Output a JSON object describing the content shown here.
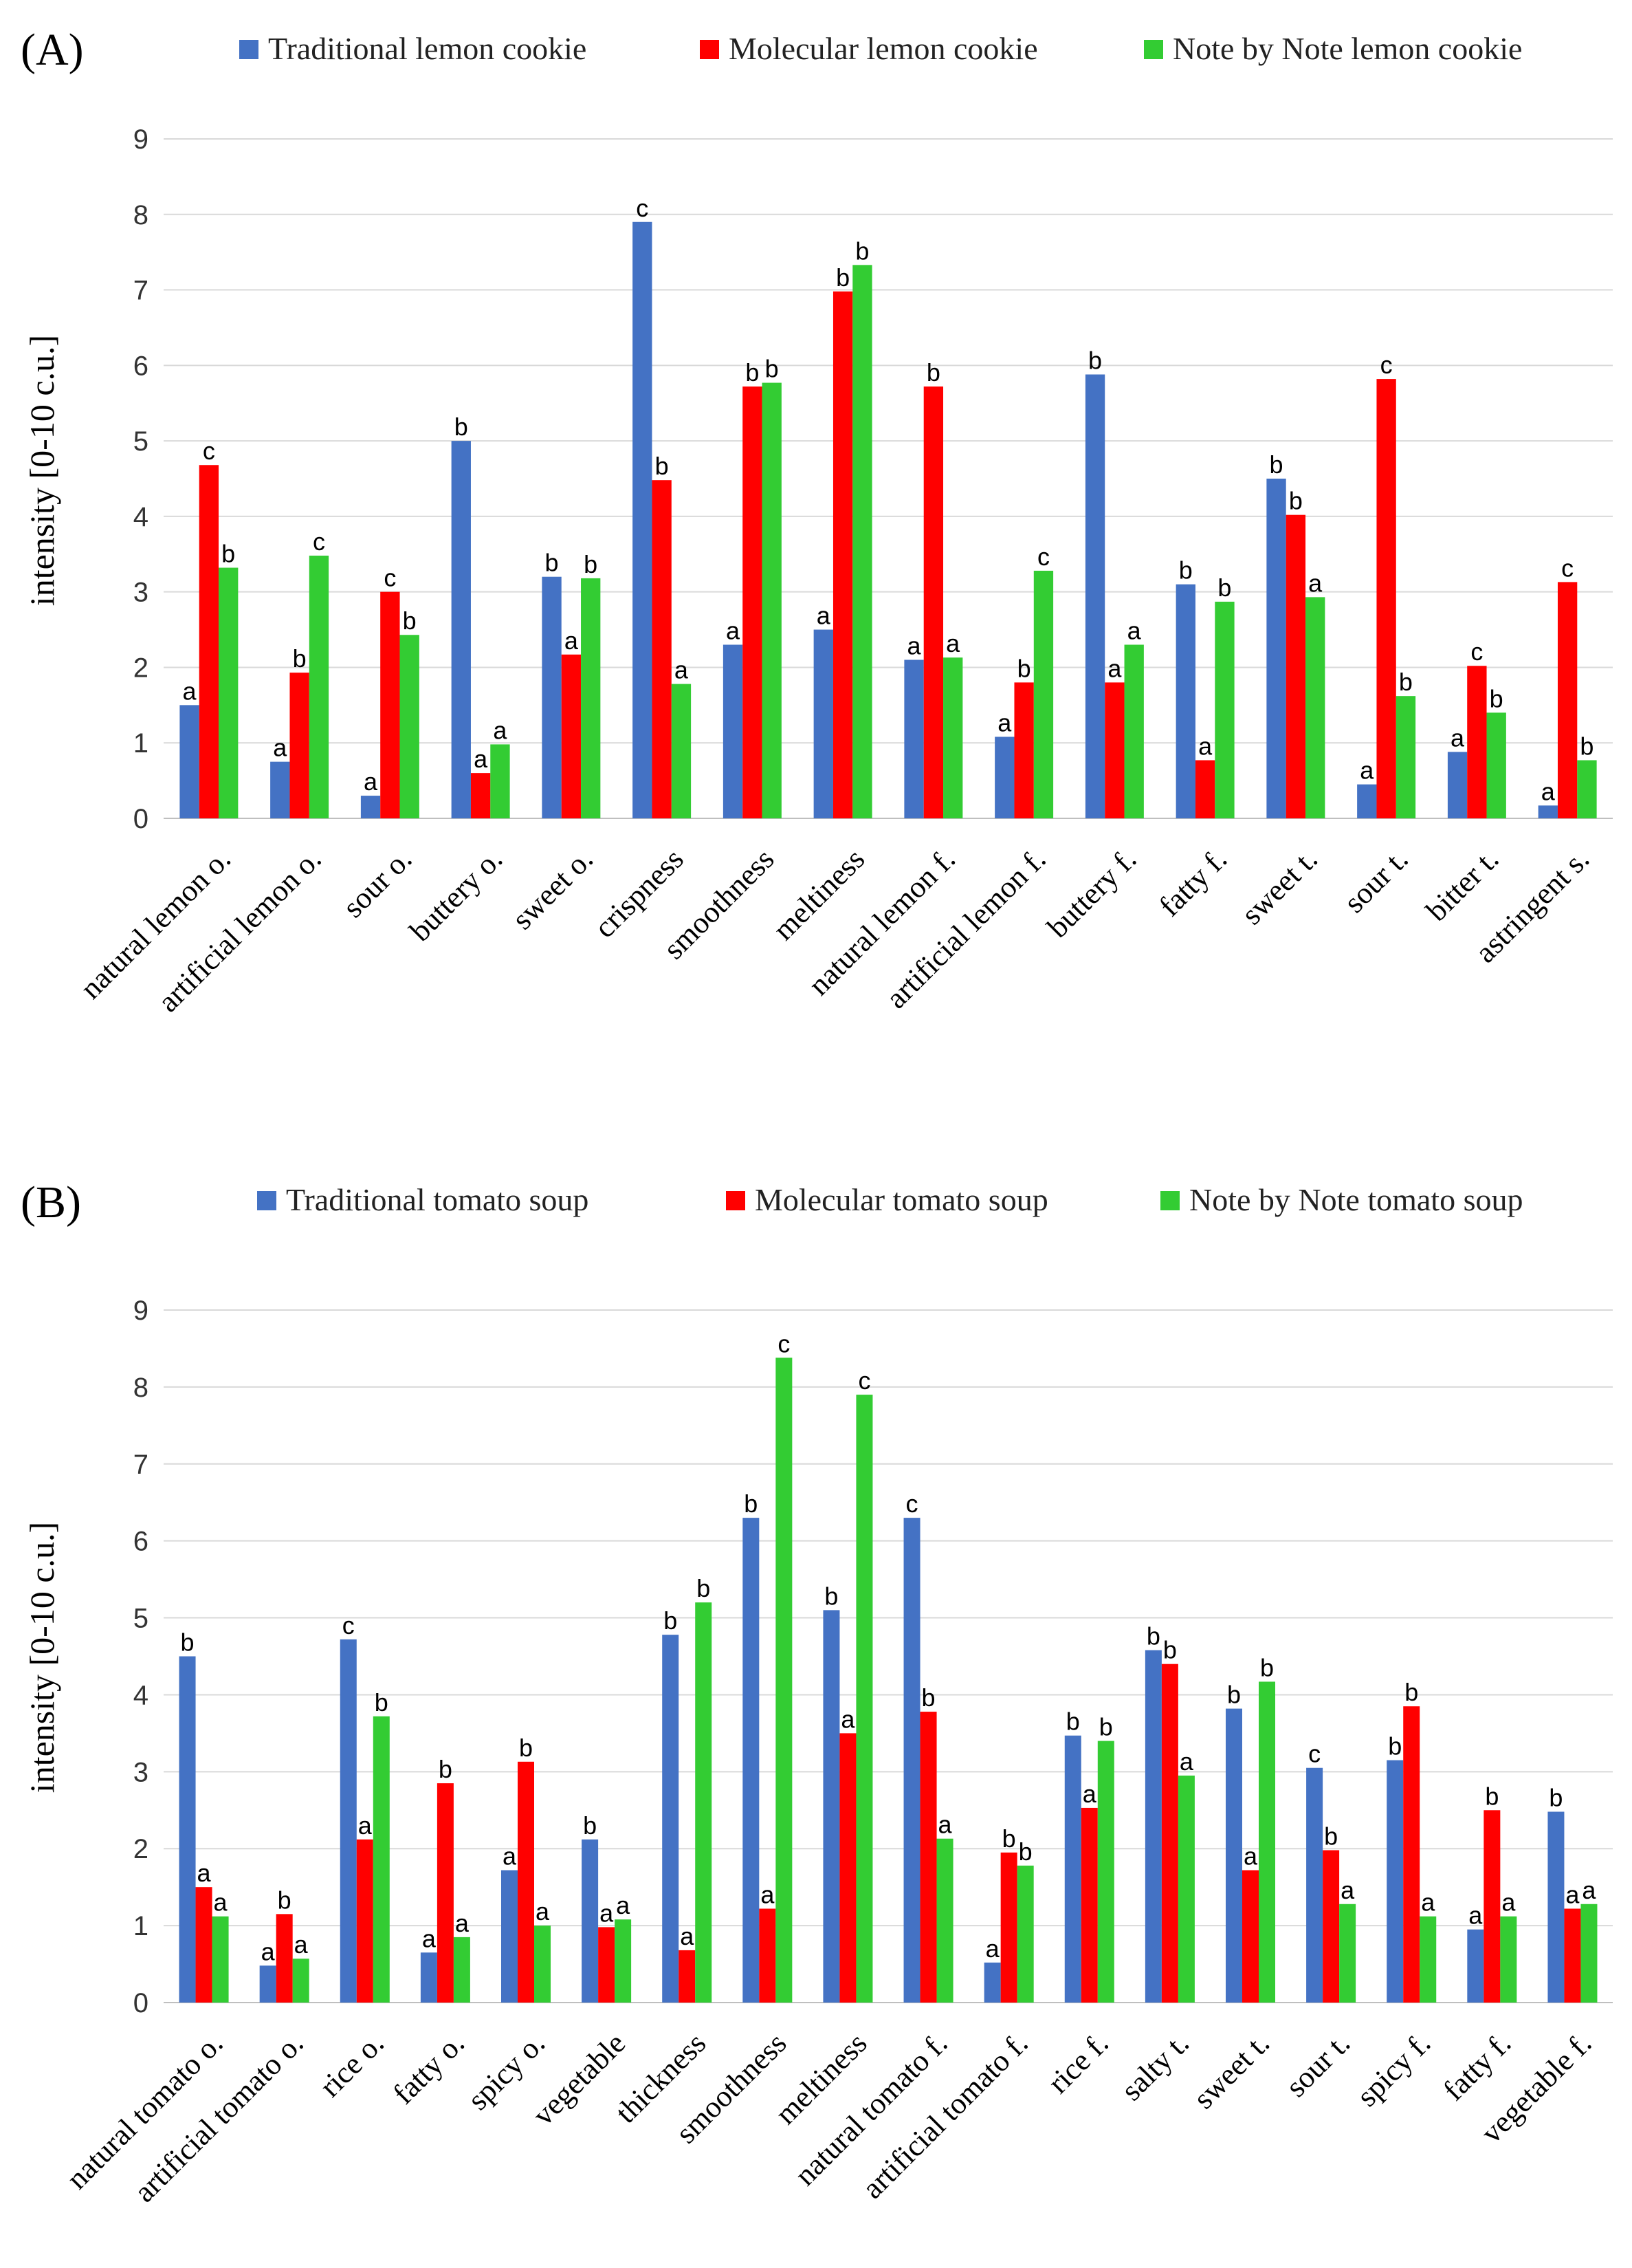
{
  "colors": {
    "traditional": "#4472C4",
    "molecular": "#FF0000",
    "note_by_note": "#33CC33"
  },
  "chart_data": [
    {
      "type": "bar",
      "panel_label": "(A)",
      "ylabel": "intensity [0-10 c.u.]",
      "xlabel": "",
      "ylim": [
        0,
        9
      ],
      "yticks": [
        0,
        1,
        2,
        3,
        4,
        5,
        6,
        7,
        8,
        9
      ],
      "grid": true,
      "legend_position": "top",
      "categories": [
        "natural lemon o.",
        "artificial lemon o.",
        "sour o.",
        "buttery o.",
        "sweet o.",
        "crispness",
        "smoothness",
        "meltiness",
        "natural lemon f.",
        "artificial lemon f.",
        "buttery f.",
        "fatty f.",
        "sweet t.",
        "sour t.",
        "bitter t.",
        "astringent s."
      ],
      "series": [
        {
          "name": "Traditional lemon cookie",
          "color_key": "traditional",
          "values": [
            1.5,
            0.75,
            0.3,
            5.0,
            3.2,
            7.9,
            2.3,
            2.5,
            2.1,
            1.08,
            5.88,
            3.1,
            4.5,
            0.45,
            0.88,
            0.17
          ],
          "letters": [
            "a",
            "a",
            "a",
            "b",
            "b",
            "c",
            "a",
            "a",
            "a",
            "a",
            "b",
            "b",
            "b",
            "a",
            "a",
            "a"
          ]
        },
        {
          "name": "Molecular lemon cookie",
          "color_key": "molecular",
          "values": [
            4.68,
            1.93,
            3.0,
            0.6,
            2.17,
            4.48,
            5.72,
            6.98,
            5.72,
            1.8,
            1.8,
            0.77,
            4.02,
            5.82,
            2.02,
            3.13
          ],
          "letters": [
            "c",
            "b",
            "c",
            "a",
            "a",
            "b",
            "b",
            "b",
            "b",
            "b",
            "a",
            "a",
            "b",
            "c",
            "c",
            "c"
          ]
        },
        {
          "name": "Note by Note lemon cookie",
          "color_key": "note_by_note",
          "values": [
            3.32,
            3.48,
            2.43,
            0.98,
            3.18,
            1.78,
            5.77,
            7.33,
            2.13,
            3.28,
            2.3,
            2.87,
            2.93,
            1.62,
            1.4,
            0.77
          ],
          "letters": [
            "b",
            "c",
            "b",
            "a",
            "b",
            "a",
            "b",
            "b",
            "a",
            "c",
            "a",
            "b",
            "a",
            "b",
            "b",
            "b"
          ]
        }
      ]
    },
    {
      "type": "bar",
      "panel_label": "(B)",
      "ylabel": "intensity [0-10 c.u.]",
      "xlabel": "",
      "ylim": [
        0,
        9
      ],
      "yticks": [
        0,
        1,
        2,
        3,
        4,
        5,
        6,
        7,
        8,
        9
      ],
      "grid": true,
      "legend_position": "top",
      "categories": [
        "natural tomato o.",
        "artificial tomato o.",
        "rice o.",
        "fatty o.",
        "spicy o.",
        "vegetable",
        "thickness",
        "smoothness",
        "meltiness",
        "natural tomato f.",
        "artificial tomato f.",
        "rice f.",
        "salty t.",
        "sweet t.",
        "sour t.",
        "spicy f.",
        "fatty f.",
        "vegetable f."
      ],
      "series": [
        {
          "name": "Traditional tomato soup",
          "color_key": "traditional",
          "values": [
            4.5,
            0.48,
            4.72,
            0.65,
            1.72,
            2.12,
            4.78,
            6.3,
            5.1,
            6.3,
            0.52,
            3.47,
            4.58,
            3.82,
            3.05,
            3.15,
            0.95,
            2.48
          ],
          "letters": [
            "b",
            "a",
            "c",
            "a",
            "a",
            "b",
            "b",
            "b",
            "b",
            "c",
            "a",
            "b",
            "b",
            "b",
            "c",
            "b",
            "a",
            "b"
          ]
        },
        {
          "name": "Molecular tomato soup",
          "color_key": "molecular",
          "values": [
            1.5,
            1.15,
            2.12,
            2.85,
            3.13,
            0.98,
            0.68,
            1.22,
            3.5,
            3.78,
            1.95,
            2.53,
            4.4,
            1.72,
            1.98,
            3.85,
            2.5,
            1.22
          ],
          "letters": [
            "a",
            "b",
            "a",
            "b",
            "b",
            "a",
            "a",
            "a",
            "a",
            "b",
            "b",
            "a",
            "b",
            "a",
            "b",
            "b",
            "b",
            "a"
          ]
        },
        {
          "name": "Note by Note tomato soup",
          "color_key": "note_by_note",
          "values": [
            1.12,
            0.57,
            3.72,
            0.85,
            1.0,
            1.08,
            5.2,
            8.38,
            7.9,
            2.13,
            1.78,
            3.4,
            2.95,
            4.17,
            1.28,
            1.12,
            1.12,
            1.28
          ],
          "letters": [
            "a",
            "a",
            "b",
            "a",
            "a",
            "a",
            "b",
            "c",
            "c",
            "a",
            "b",
            "b",
            "a",
            "b",
            "a",
            "a",
            "a",
            "a"
          ]
        }
      ]
    }
  ]
}
